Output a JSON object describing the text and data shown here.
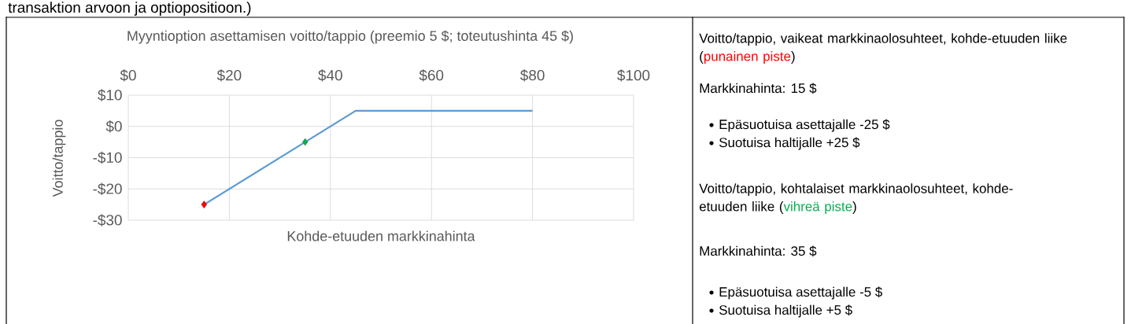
{
  "chart_data": [
    {
      "type": "line",
      "title": "Myyntioption asettamisen voitto/tappio (preemio 5 $; toteutushinta 45 $)",
      "xlabel": "Kohde-etuuden markkinahinta",
      "ylabel": "Voitto/tappio",
      "xlim": [
        0,
        100
      ],
      "xticks": [
        {
          "value": 0,
          "label": "$0"
        },
        {
          "value": 20,
          "label": "$20"
        },
        {
          "value": 40,
          "label": "$40"
        },
        {
          "value": 60,
          "label": "$60"
        },
        {
          "value": 80,
          "label": "$80"
        },
        {
          "value": 100,
          "label": "$100"
        }
      ],
      "ylim": [
        -30,
        10
      ],
      "yticks": [
        {
          "value": -30,
          "label": "-$30"
        },
        {
          "value": -20,
          "label": "-$20"
        },
        {
          "value": -10,
          "label": "-$10"
        },
        {
          "value": 0,
          "label": "$0"
        },
        {
          "value": 10,
          "label": "$10"
        }
      ],
      "grid": true,
      "annotations": [
        "transaktion arvoon ja optiopositioon.)"
      ],
      "series": [
        {
          "type": "line",
          "color": "#5b9bd5",
          "x": [
            15,
            45,
            80
          ],
          "values": [
            -25,
            5,
            5
          ]
        },
        {
          "type": "scatter",
          "marker": "diamond",
          "color": "#ff0000",
          "x": [
            15
          ],
          "values": [
            -25
          ]
        },
        {
          "type": "scatter",
          "marker": "diamond",
          "color": "#00b050",
          "x": [
            35
          ],
          "values": [
            -5
          ]
        }
      ]
    },
    {
      "type": "other",
      "annotations": [
        "Voitto/tappio, vaikeat markkinaolosuhteet, kohde-etuuden liike (",
        "punainen piste",
        ")",
        "Markkinahinta: 15 $",
        "Epäsuotuisa asettajalle -25 $",
        "Suotuisa haltijalle +25 $",
        "Voitto/tappio, kohtalaiset markkinaolosuhteet, kohde-etuuden liike (",
        "vihreä piste",
        ")",
        "Markkinahinta: 35 $",
        "Epäsuotuisa asettajalle -5 $",
        "Suotuisa haltijalle +5 $"
      ]
    }
  ]
}
